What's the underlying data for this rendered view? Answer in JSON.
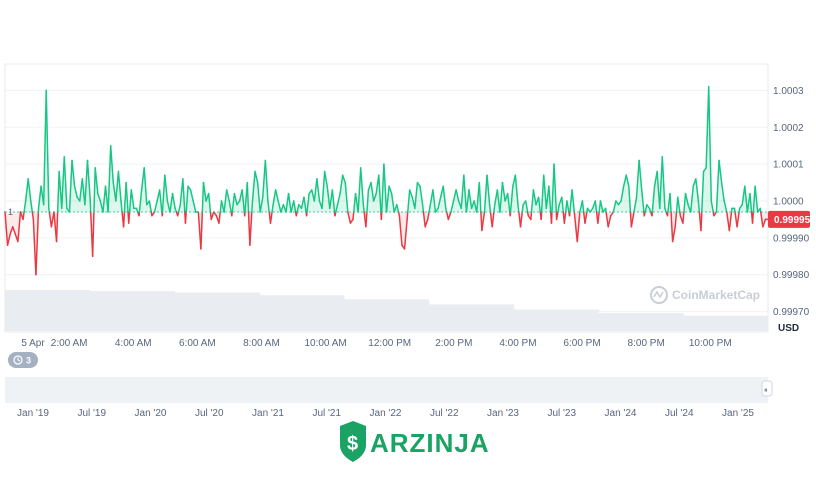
{
  "chart_data": {
    "type": "area",
    "title": "",
    "xlabel": "",
    "ylabel": "",
    "unit": "USD",
    "baseline": 0.99997,
    "baseline_label": "1",
    "current_price": "0.99995",
    "ylim": [
      0.99965,
      1.00035
    ],
    "y_ticks": [
      "1.0003",
      "1.0002",
      "1.0001",
      "1.0000",
      "0.99990",
      "0.99980",
      "0.99970"
    ],
    "y_tick_values": [
      1.0003,
      1.0002,
      1.0001,
      1.0,
      0.9999,
      0.9998,
      0.9997
    ],
    "x_ticks": [
      "5 Apr",
      "2:00 AM",
      "4:00 AM",
      "6:00 AM",
      "8:00 AM",
      "10:00 AM",
      "12:00 PM",
      "2:00 PM",
      "4:00 PM",
      "6:00 PM",
      "8:00 PM",
      "10:00 PM"
    ],
    "x_tick_hours": [
      0,
      2,
      4,
      6,
      8,
      10,
      12,
      14,
      16,
      18,
      20,
      22
    ],
    "x_range_hours": [
      0,
      23.8
    ],
    "series": [
      {
        "values": [
          0.99997,
          0.99988,
          0.99991,
          0.99993,
          0.99991,
          0.99989,
          0.99997,
          0.99995,
          1.0,
          1.00006,
          1.0,
          0.99995,
          0.9998,
          0.99998,
          1.00004,
          0.99999,
          1.0003,
          0.99998,
          0.99993,
          0.99997,
          0.99989,
          1.00008,
          0.99998,
          1.00012,
          0.99998,
          0.99997,
          1.00011,
          1.00004,
          1.00001,
          1.0,
          1.00006,
          0.99999,
          1.00011,
          1.00001,
          0.99985,
          1.00009,
          1.00002,
          1.0,
          0.99997,
          1.00004,
          0.99997,
          1.00015,
          1.00005,
          1.0,
          1.00008,
          1.0,
          0.99993,
          1.00005,
          0.99994,
          1.00003,
          0.99998,
          0.99998,
          0.99996,
          1.00003,
          1.00009,
          0.99999,
          1.0,
          0.99996,
          0.99997,
          1.0,
          1.00003,
          0.99996,
          1.00007,
          1.0,
          0.99997,
          1.00002,
          0.99998,
          0.99996,
          0.99999,
          1.00006,
          0.99994,
          1.00004,
          1.00003,
          1.0,
          0.99997,
          0.99997,
          0.99987,
          1.00005,
          1.0,
          1.00002,
          0.99995,
          0.99997,
          0.99996,
          0.99994,
          1.0,
          0.99997,
          1.00003,
          1.0,
          0.99996,
          1.00002,
          0.99999,
          1.0,
          1.00003,
          0.99996,
          1.00005,
          0.99988,
          1.0,
          1.00008,
          1.00005,
          0.99997,
          1.00001,
          1.00011,
          1.0,
          0.99994,
          0.99999,
          1.00003,
          1.0,
          0.99997,
          0.99999,
          0.99997,
          1.00002,
          0.99997,
          1.0,
          0.99996,
          0.99999,
          0.99998,
          1.00001,
          0.99996,
          1.00002,
          1.00003,
          1.0,
          1.00006,
          1.0,
          0.99998,
          1.00008,
          1.00004,
          0.99998,
          1.00003,
          0.99996,
          0.99999,
          1.00002,
          1.00007,
          1.00005,
          0.99997,
          0.99994,
          0.99995,
          1.00002,
          0.99997,
          1.00009,
          0.99999,
          0.99993,
          1.00003,
          1.00005,
          1.0,
          1.00002,
          1.00007,
          0.99995,
          1.0001,
          0.99997,
          1.00004,
          1.00002,
          0.99997,
          0.99999,
          0.99996,
          0.99988,
          0.99987,
          0.99995,
          1.00003,
          1.00001,
          0.99998,
          1.00005,
          1.00004,
          0.99999,
          0.99993,
          0.99995,
          0.99999,
          1.00003,
          0.99997,
          0.99998,
          1.00001,
          1.00004,
          0.99998,
          0.99995,
          0.99997,
          1.0,
          1.00003,
          1.0,
          0.99998,
          1.00007,
          0.99997,
          1.00003,
          0.99998,
          1.0,
          0.99997,
          1.00005,
          0.99992,
          0.99997,
          1.00007,
          0.99999,
          0.99993,
          0.99999,
          1.00003,
          0.99997,
          1.00005,
          1.0,
          1.00002,
          0.99996,
          1.00004,
          1.00007,
          0.99999,
          0.99993,
          0.99999,
          1.0,
          0.99996,
          0.99995,
          1.00003,
          0.99999,
          1.00001,
          0.99995,
          1.00007,
          0.99998,
          1.00004,
          0.99994,
          1.0001,
          0.99995,
          0.99999,
          1.00001,
          0.99994,
          1.0,
          0.99996,
          1.00003,
          0.99996,
          0.99989,
          0.99997,
          1.0,
          0.99994,
          0.99998,
          0.99997,
          0.99998,
          1.0,
          0.99994,
          1.0,
          0.99997,
          0.99998,
          0.99993,
          0.99996,
          0.99997,
          1.0,
          0.99999,
          1.0,
          1.00004,
          1.00007,
          1.00004,
          0.99993,
          0.99997,
          1.00001,
          1.00011,
          1.00003,
          0.99996,
          0.99999,
          0.99998,
          0.99996,
          1.00004,
          1.00008,
          0.99998,
          1.00012,
          0.99998,
          0.99996,
          1.00002,
          0.99989,
          0.99993,
          1.00001,
          0.99996,
          0.99994,
          1.00002,
          0.99999,
          0.99997,
          1.00004,
          1.00006,
          1.0,
          0.99992,
          1.00008,
          1.00009,
          1.00031,
          1.0,
          0.99996,
          0.99997,
          1.00011,
          1.00005,
          1.0,
          0.99997,
          0.99992,
          0.99998,
          0.99998,
          0.99993,
          0.99998,
          0.99999,
          1.00004,
          0.99997,
          1.00002,
          0.99994,
          1.00004,
          0.99997,
          0.99998,
          0.99993,
          0.99995,
          0.99995
        ]
      }
    ],
    "volume_levels": [
      0.8,
      0.78,
      0.75,
      0.7,
      0.62,
      0.52,
      0.42,
      0.35,
      0.3
    ],
    "navigator": {
      "ticks": [
        "Jan '19",
        "Jul '19",
        "Jan '20",
        "Jul '20",
        "Jan '21",
        "Jul '21",
        "Jan '22",
        "Jul '22",
        "Jan '23",
        "Jul '23",
        "Jan '24",
        "Jul '24",
        "Jan '25"
      ],
      "handle_label": "⏸"
    },
    "colors": {
      "up": "#16c784",
      "down": "#ea3943",
      "up_fill": "#16c784",
      "down_fill": "#ea3943",
      "grid": "#eff2f5",
      "volume": "#e9edf2",
      "tag": "#ea3943"
    }
  },
  "overlay": {
    "watermark": "CoinMarketCap",
    "watermark_icon": "coinmarketcap-logo-icon",
    "history_badge_count": "3",
    "history_icon": "history-clock-icon"
  },
  "branding": {
    "logo_text": "ARZINJA",
    "logo_icon": "arzinja-dollar-shield-icon"
  }
}
